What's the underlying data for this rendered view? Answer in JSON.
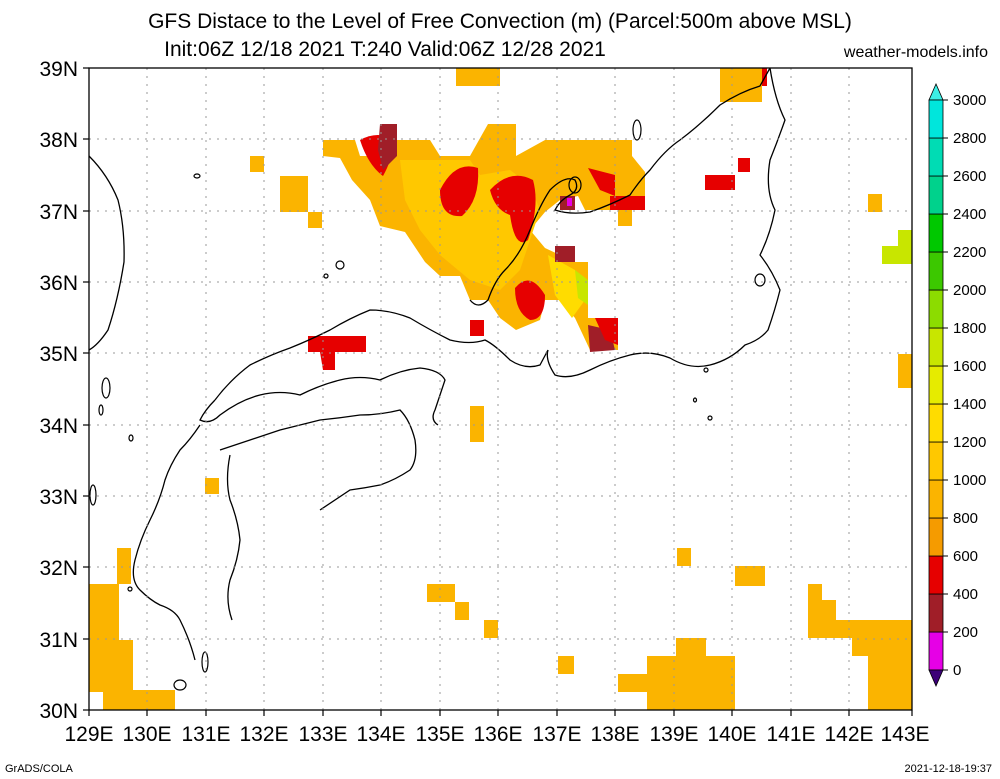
{
  "title_line1": "GFS Distace to the Level of Free Convection (m) (Parcel:500m above MSL)",
  "title_line2": "Init:06Z 12/18 2021 T:240 Valid:06Z 12/28 2021",
  "site": "weather-models.info",
  "footer_left": "GrADS/COLA",
  "footer_right": "2021-12-18-19:37",
  "lon_labels": [
    "129E",
    "130E",
    "131E",
    "132E",
    "133E",
    "134E",
    "135E",
    "136E",
    "137E",
    "138E",
    "139E",
    "140E",
    "141E",
    "142E",
    "143E"
  ],
  "lat_labels": [
    "39N",
    "38N",
    "37N",
    "36N",
    "35N",
    "34N",
    "33N",
    "32N",
    "31N",
    "30N"
  ],
  "colorbar": {
    "labels": [
      "0",
      "200",
      "400",
      "600",
      "800",
      "1000",
      "1200",
      "1400",
      "1600",
      "1800",
      "2000",
      "2200",
      "2400",
      "2600",
      "2800",
      "3000"
    ],
    "colors": [
      "#3c0078",
      "#e600e6",
      "#a01e28",
      "#e60000",
      "#f59b00",
      "#fbb400",
      "#ffc800",
      "#ffdc00",
      "#e6eb00",
      "#c8e600",
      "#8cdc00",
      "#3cc800",
      "#00c800",
      "#00d28c",
      "#00dcb4",
      "#00e6dc",
      "#3cf0e6"
    ]
  },
  "legend_items": [
    {
      "range": "0-200",
      "color": "#e600e6"
    },
    {
      "range": "200-400",
      "color": "#a01e28"
    },
    {
      "range": "400-600",
      "color": "#e60000"
    },
    {
      "range": "600-800",
      "color": "#f59b00"
    },
    {
      "range": "800-1000",
      "color": "#fbb400"
    },
    {
      "range": "1000-1200",
      "color": "#ffc800"
    },
    {
      "range": "1400-1600",
      "color": "#e6eb00"
    },
    {
      "range": "1600-1800",
      "color": "#c8e600"
    }
  ]
}
